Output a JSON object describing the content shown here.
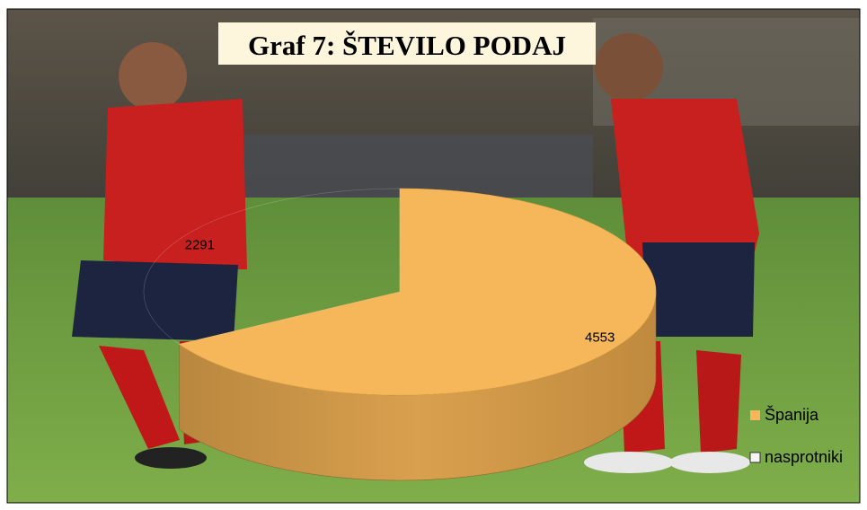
{
  "chart_data": {
    "type": "pie",
    "title": "Graf 7: ŠTEVILO PODAJ",
    "categories": [
      "Španija",
      "nasprotniki"
    ],
    "values": [
      4553,
      2291
    ],
    "colors": [
      "#f6b65a",
      "none"
    ],
    "legend": "right",
    "three_d": true
  }
}
